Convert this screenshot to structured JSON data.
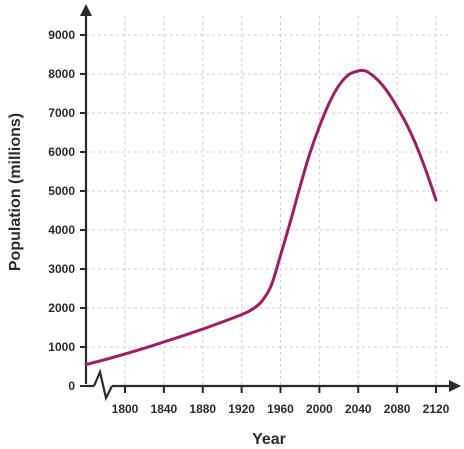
{
  "chart_data": {
    "type": "line",
    "xlabel": "Year",
    "ylabel": "Population (millions)",
    "x_ticks": [
      1800,
      1840,
      1880,
      1920,
      1960,
      2000,
      2040,
      2080,
      2120
    ],
    "y_ticks": [
      0,
      1000,
      2000,
      3000,
      4000,
      5000,
      6000,
      7000,
      8000,
      9000
    ],
    "ylim": [
      0,
      9000
    ],
    "grid": true,
    "axis_break": "x-axis, near origin",
    "series": [
      {
        "color": "#9e1f63",
        "x": [
          1760,
          1780,
          1800,
          1820,
          1840,
          1860,
          1880,
          1900,
          1920,
          1930,
          1940,
          1950,
          1960,
          1970,
          1980,
          1990,
          2000,
          2010,
          2020,
          2030,
          2040,
          2045,
          2050,
          2060,
          2070,
          2080,
          2090,
          2100,
          2110,
          2120
        ],
        "y": [
          550,
          680,
          820,
          970,
          1130,
          1290,
          1460,
          1640,
          1830,
          1950,
          2150,
          2550,
          3350,
          4200,
          5100,
          5950,
          6650,
          7250,
          7700,
          7980,
          8080,
          8090,
          8050,
          7850,
          7550,
          7150,
          6700,
          6150,
          5500,
          4770
        ]
      }
    ]
  }
}
